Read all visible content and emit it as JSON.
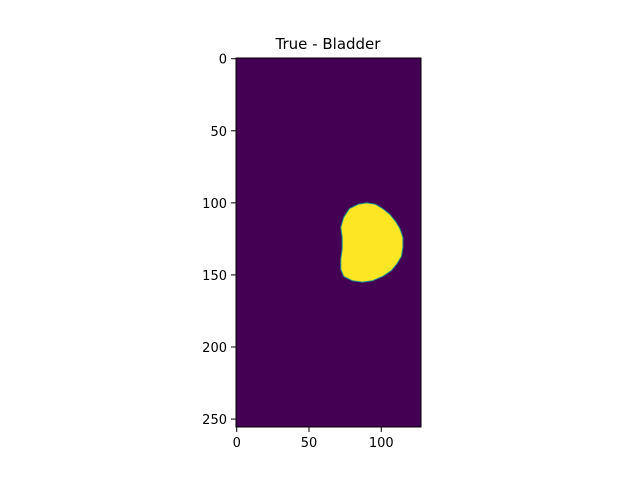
{
  "chart_data": {
    "type": "heatmap",
    "title": "True - Bladder",
    "xlabel": "",
    "ylabel": "",
    "image_shape": [
      256,
      128
    ],
    "xlim": [
      -0.5,
      127.5
    ],
    "ylim": [
      255.5,
      -0.5
    ],
    "y_axis_inverted": true,
    "x_ticks": [
      0,
      50,
      100
    ],
    "y_ticks": [
      0,
      50,
      100,
      150,
      200,
      250
    ],
    "grid": false,
    "colormap": "viridis",
    "background_value": 0,
    "foreground_value": 1,
    "colors": {
      "background": "#440154",
      "foreground": "#fde725",
      "edge": "#21918c"
    },
    "region": {
      "label_value": 1,
      "description": "bladder mask",
      "outline": [
        [
          90,
          100
        ],
        [
          96,
          101
        ],
        [
          101,
          104
        ],
        [
          106,
          108
        ],
        [
          110,
          113
        ],
        [
          113,
          118
        ],
        [
          115,
          124
        ],
        [
          115,
          131
        ],
        [
          114,
          137
        ],
        [
          111,
          142
        ],
        [
          107,
          147
        ],
        [
          101,
          151
        ],
        [
          94,
          154
        ],
        [
          87,
          155
        ],
        [
          80,
          154
        ],
        [
          74,
          151
        ],
        [
          72,
          146
        ],
        [
          72,
          139
        ],
        [
          73,
          132
        ],
        [
          73,
          124
        ],
        [
          72,
          117
        ],
        [
          74,
          110
        ],
        [
          78,
          104
        ],
        [
          84,
          101
        ]
      ]
    }
  }
}
